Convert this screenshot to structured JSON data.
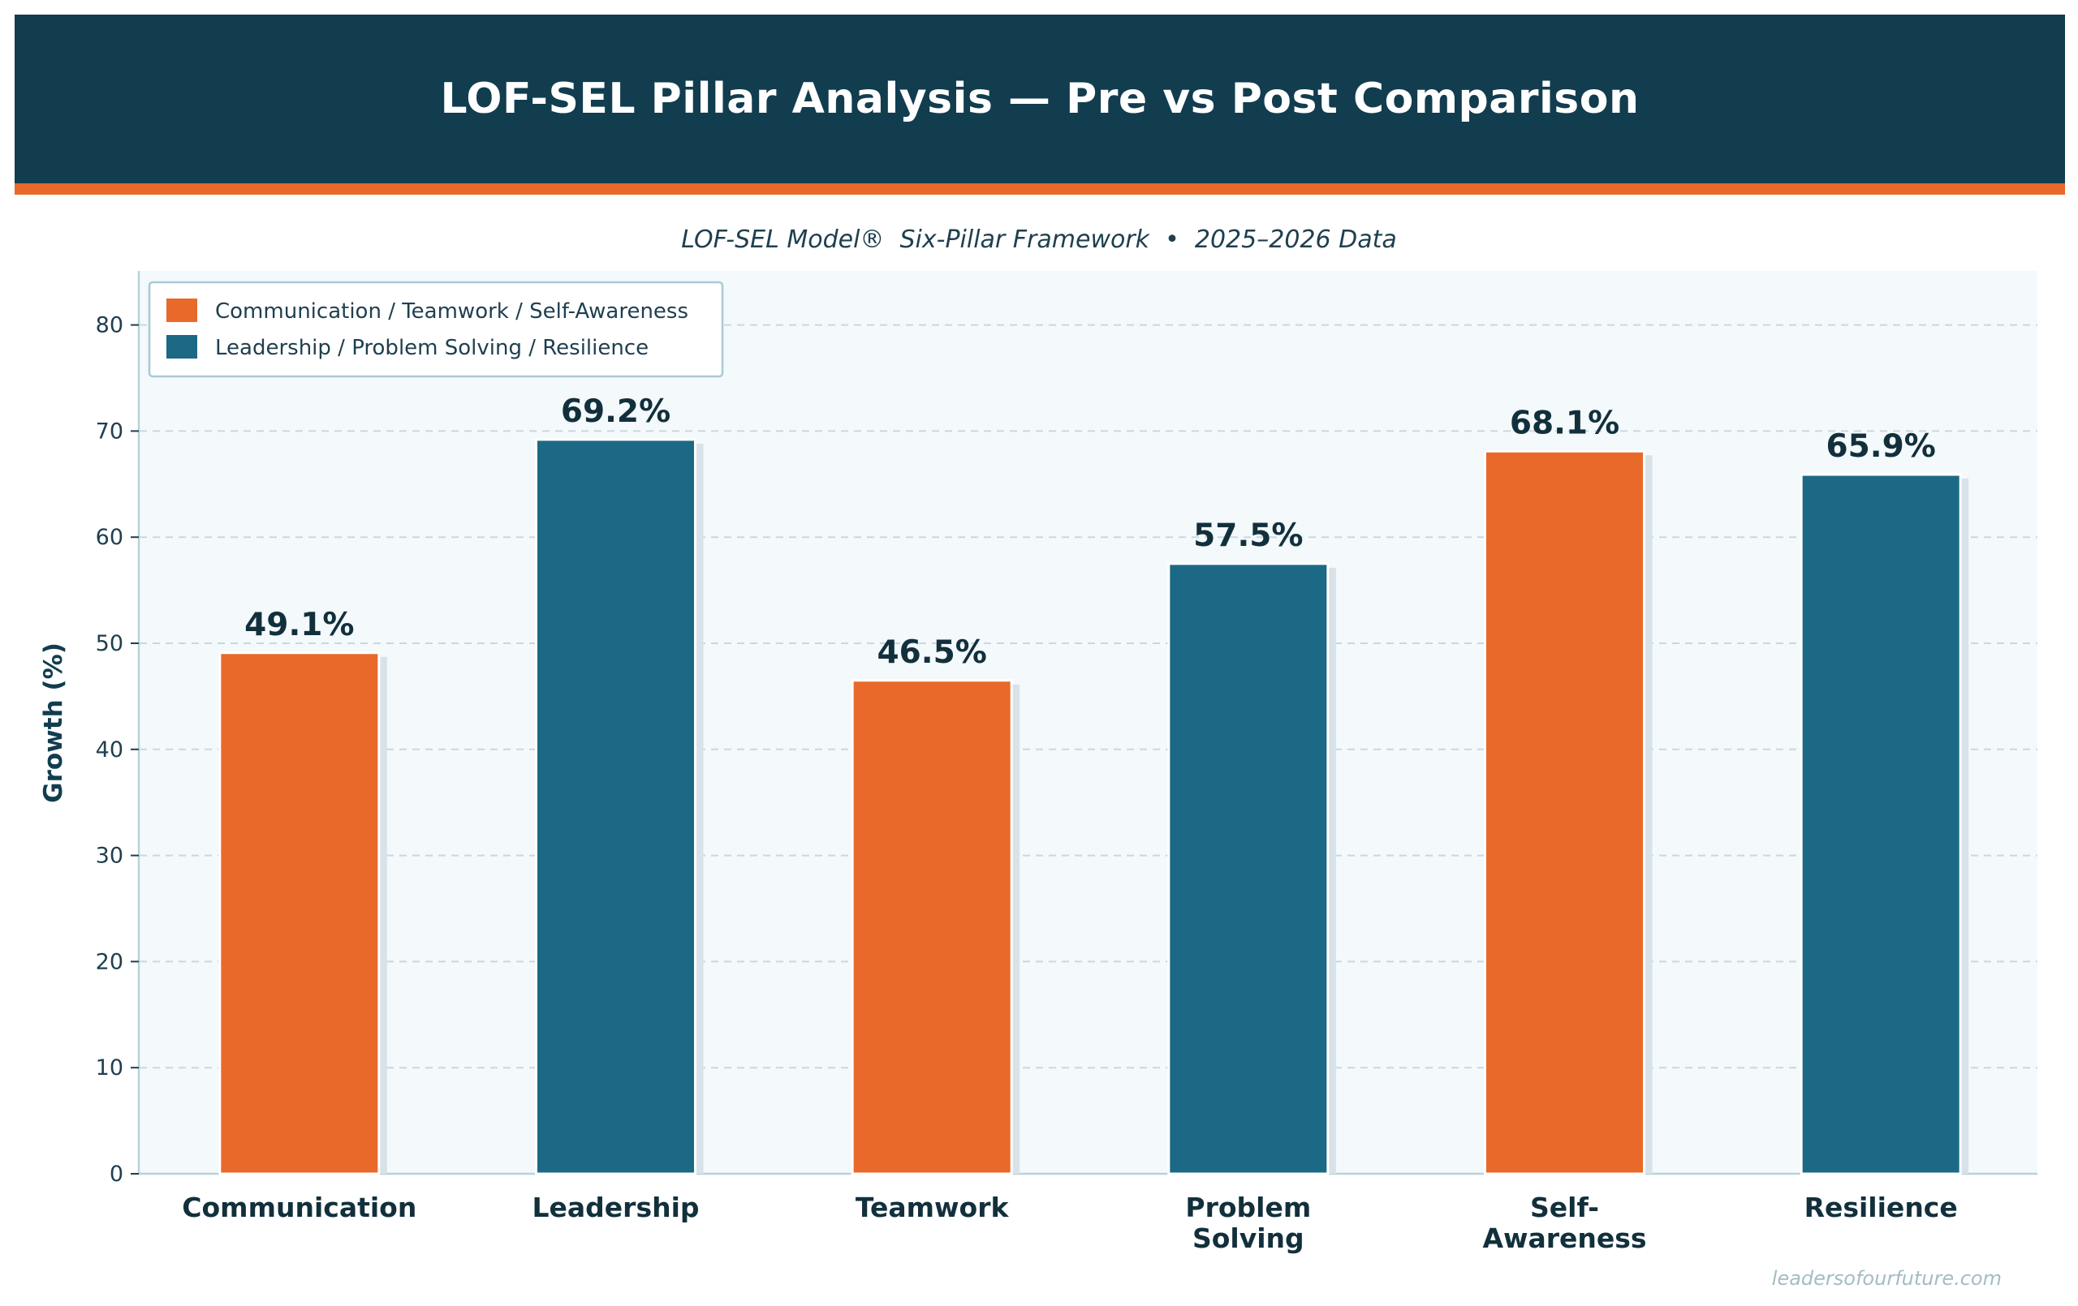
{
  "header": {
    "title": "LOF-SEL Pillar Analysis — Pre vs Post Comparison",
    "subtitle": "LOF-SEL Model®  Six-Pillar Framework  •  2025–2026 Data"
  },
  "colors": {
    "header_bg": "#113d4f",
    "accent_orange": "#e8692a",
    "accent_teal": "#1c6985"
  },
  "chart_data": {
    "type": "bar",
    "categories": [
      "Communication",
      "Leadership",
      "Teamwork",
      "Problem Solving",
      "Self-Awareness",
      "Resilience"
    ],
    "category_display": [
      [
        "Communication"
      ],
      [
        "Leadership"
      ],
      [
        "Teamwork"
      ],
      [
        "Problem",
        "Solving"
      ],
      [
        "Self-",
        "Awareness"
      ],
      [
        "Resilience"
      ]
    ],
    "values": [
      49.1,
      69.2,
      46.5,
      57.5,
      68.1,
      65.9
    ],
    "value_labels": [
      "49.1%",
      "69.2%",
      "46.5%",
      "57.5%",
      "68.1%",
      "65.9%"
    ],
    "bar_colors": [
      "#e8692a",
      "#1c6985",
      "#e8692a",
      "#1c6985",
      "#e8692a",
      "#1c6985"
    ],
    "ylabel": "Growth (%)",
    "xlabel": "",
    "ylim": [
      0,
      85
    ],
    "yticks": [
      0,
      10,
      20,
      30,
      40,
      50,
      60,
      70,
      80
    ],
    "grid": true,
    "legend_position": "top-left",
    "legend": [
      {
        "label": "Communication / Teamwork / Self-Awareness",
        "color": "#e8692a"
      },
      {
        "label": "Leadership / Problem Solving / Resilience",
        "color": "#1c6985"
      }
    ]
  },
  "footer": {
    "watermark": "leadersofourfuture.com"
  }
}
